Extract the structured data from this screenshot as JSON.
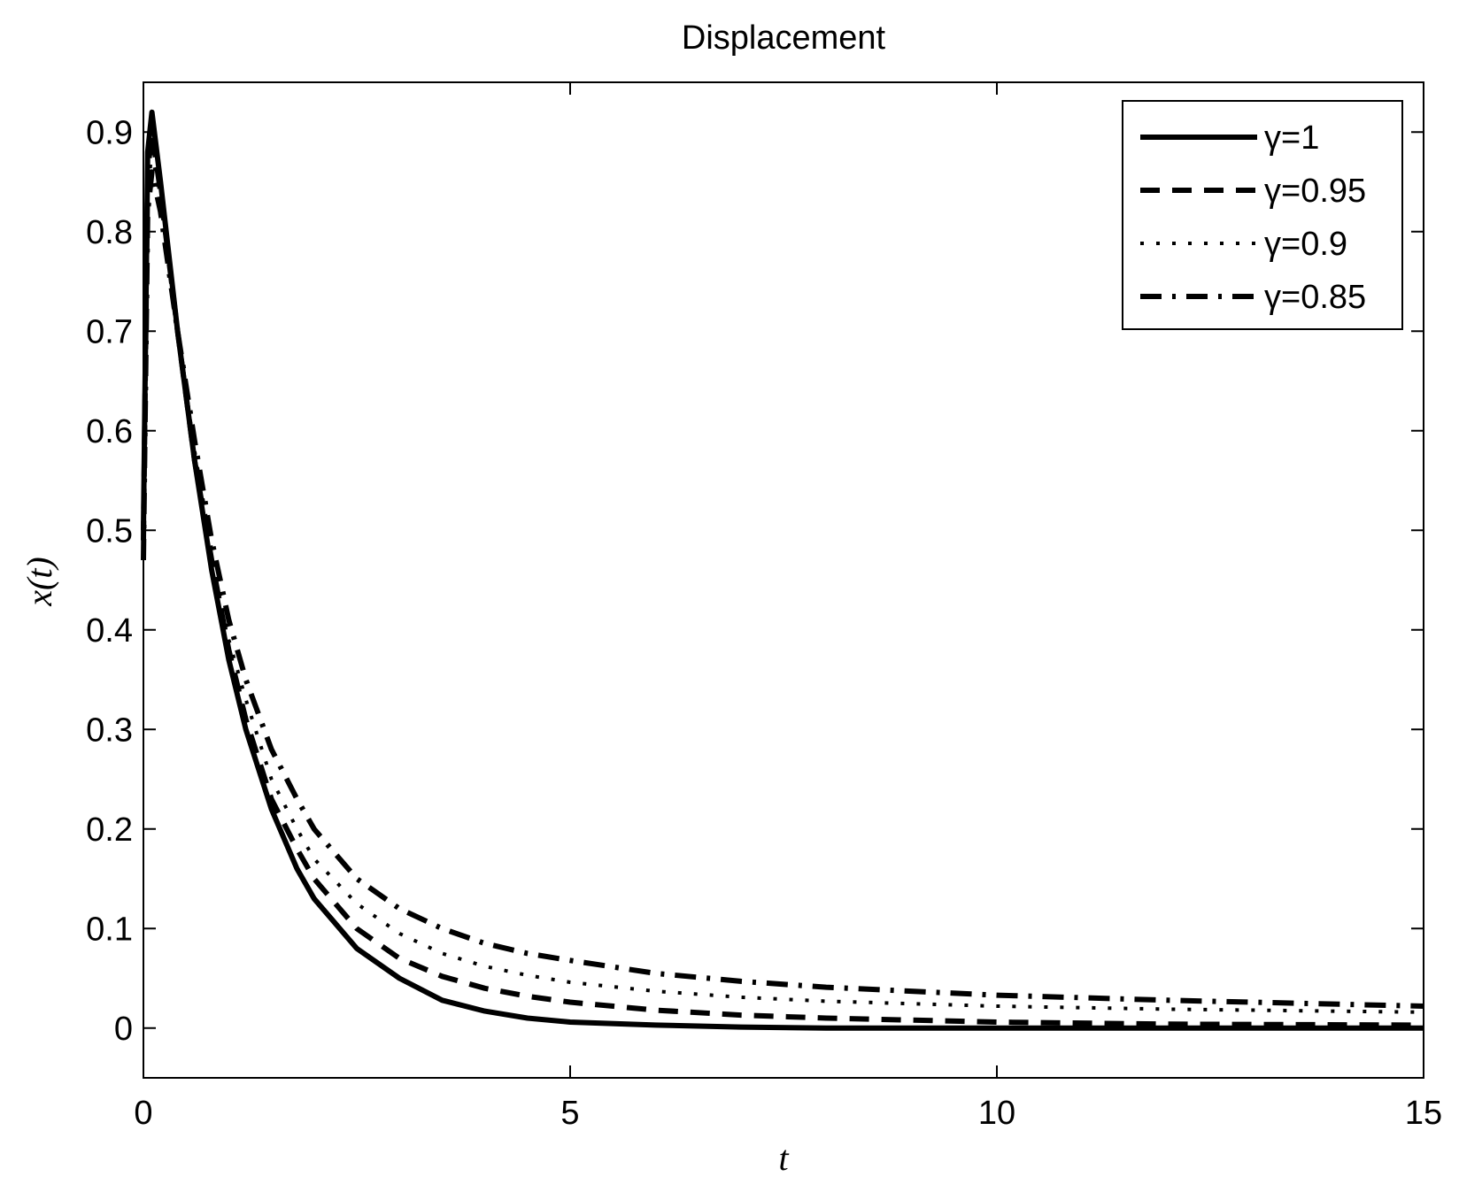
{
  "chart_data": {
    "type": "line",
    "title": "Displacement",
    "xlabel": "t",
    "ylabel": "x(t)",
    "xlim": [
      0,
      15
    ],
    "ylim": [
      -0.05,
      0.95
    ],
    "xticks": [
      0,
      5,
      10,
      15
    ],
    "xtick_labels": [
      "0",
      "5",
      "10",
      "15"
    ],
    "yticks": [
      0,
      0.1,
      0.2,
      0.3,
      0.4,
      0.5,
      0.6,
      0.7,
      0.8,
      0.9
    ],
    "ytick_labels": [
      "0",
      "0.1",
      "0.2",
      "0.3",
      "0.4",
      "0.5",
      "0.6",
      "0.7",
      "0.8",
      "0.9"
    ],
    "grid": false,
    "legend_position": "top-right",
    "series": [
      {
        "name": "γ=1",
        "line_style": "solid",
        "x": [
          0,
          0.05,
          0.1,
          0.2,
          0.4,
          0.6,
          0.8,
          1.0,
          1.2,
          1.5,
          1.8,
          2.0,
          2.5,
          3.0,
          3.5,
          4.0,
          4.5,
          5.0,
          6.0,
          7.0,
          8.0,
          10.0,
          12.0,
          15.0
        ],
        "y": [
          0.5,
          0.88,
          0.92,
          0.85,
          0.7,
          0.57,
          0.46,
          0.37,
          0.3,
          0.22,
          0.16,
          0.13,
          0.08,
          0.05,
          0.028,
          0.017,
          0.01,
          0.006,
          0.003,
          0.001,
          0.0,
          0.0,
          0.0,
          0.0
        ]
      },
      {
        "name": "γ=0.95",
        "line_style": "dashed",
        "x": [
          0,
          0.05,
          0.1,
          0.2,
          0.4,
          0.6,
          0.8,
          1.0,
          1.2,
          1.5,
          1.8,
          2.0,
          2.5,
          3.0,
          3.5,
          4.0,
          4.5,
          5.0,
          6.0,
          7.0,
          8.0,
          10.0,
          12.0,
          15.0
        ],
        "y": [
          0.49,
          0.86,
          0.9,
          0.84,
          0.7,
          0.57,
          0.47,
          0.38,
          0.31,
          0.23,
          0.18,
          0.15,
          0.1,
          0.07,
          0.052,
          0.04,
          0.032,
          0.026,
          0.018,
          0.013,
          0.01,
          0.006,
          0.004,
          0.003
        ]
      },
      {
        "name": "γ=0.9",
        "line_style": "dotted",
        "x": [
          0,
          0.05,
          0.1,
          0.2,
          0.4,
          0.6,
          0.8,
          1.0,
          1.2,
          1.5,
          1.8,
          2.0,
          2.5,
          3.0,
          3.5,
          4.0,
          4.5,
          5.0,
          6.0,
          7.0,
          8.0,
          10.0,
          12.0,
          15.0
        ],
        "y": [
          0.48,
          0.84,
          0.88,
          0.83,
          0.7,
          0.58,
          0.48,
          0.39,
          0.33,
          0.25,
          0.2,
          0.17,
          0.125,
          0.095,
          0.075,
          0.062,
          0.053,
          0.046,
          0.037,
          0.031,
          0.027,
          0.022,
          0.019,
          0.016
        ]
      },
      {
        "name": "γ=0.85",
        "line_style": "dash-dot",
        "x": [
          0,
          0.05,
          0.1,
          0.2,
          0.4,
          0.6,
          0.8,
          1.0,
          1.2,
          1.5,
          1.8,
          2.0,
          2.5,
          3.0,
          3.5,
          4.0,
          4.5,
          5.0,
          6.0,
          7.0,
          8.0,
          10.0,
          12.0,
          15.0
        ],
        "y": [
          0.47,
          0.82,
          0.86,
          0.82,
          0.7,
          0.59,
          0.49,
          0.41,
          0.35,
          0.28,
          0.23,
          0.2,
          0.15,
          0.12,
          0.1,
          0.085,
          0.075,
          0.068,
          0.055,
          0.047,
          0.041,
          0.033,
          0.028,
          0.022
        ]
      }
    ]
  }
}
